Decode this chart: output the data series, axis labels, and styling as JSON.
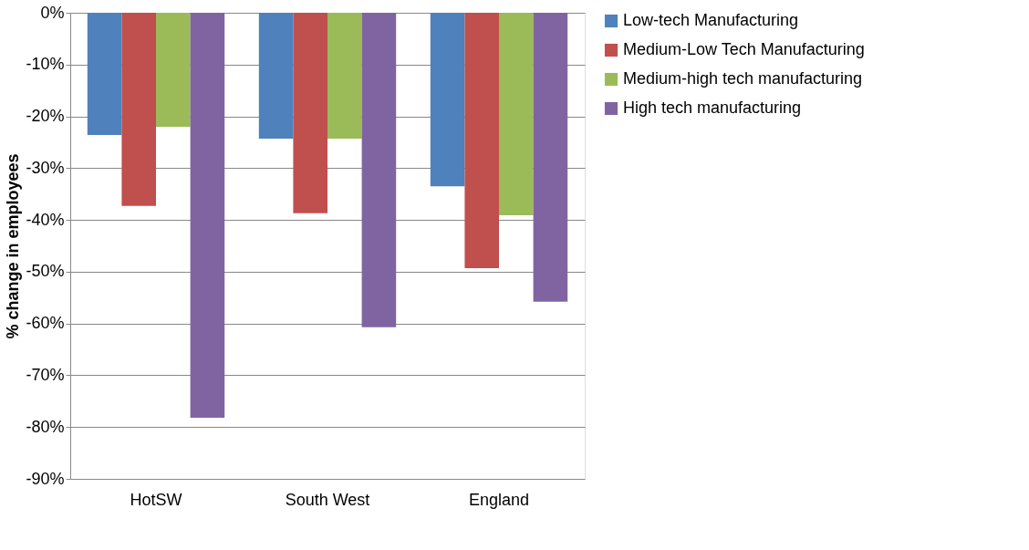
{
  "chart_data": {
    "type": "bar",
    "ylabel": "% change in employees",
    "categories": [
      "HotSW",
      "South West",
      "England"
    ],
    "series": [
      {
        "name": "Low-tech Manufacturing",
        "color": "#4f81bd",
        "values": [
          -23.6,
          -24.3,
          -33.5
        ]
      },
      {
        "name": "Medium-Low Tech Manufacturing",
        "color": "#c0504d",
        "values": [
          -37.3,
          -38.7,
          -49.3
        ]
      },
      {
        "name": "Medium-high tech manufacturing",
        "color": "#9bbb59",
        "values": [
          -22.0,
          -24.3,
          -39.1
        ]
      },
      {
        "name": "High tech manufacturing",
        "color": "#8064a2",
        "values": [
          -78.2,
          -60.7,
          -55.8
        ]
      }
    ],
    "ylim": [
      -90,
      0
    ],
    "yticks": [
      {
        "value": 0,
        "label": "0%"
      },
      {
        "value": -10,
        "label": "-10%"
      },
      {
        "value": -20,
        "label": "-20%"
      },
      {
        "value": -30,
        "label": "-30%"
      },
      {
        "value": -40,
        "label": "-40%"
      },
      {
        "value": -50,
        "label": "-50%"
      },
      {
        "value": -60,
        "label": "-60%"
      },
      {
        "value": -70,
        "label": "-70%"
      },
      {
        "value": -80,
        "label": "-80%"
      },
      {
        "value": -90,
        "label": "-90%"
      }
    ],
    "grid": "y",
    "legend": "right"
  }
}
